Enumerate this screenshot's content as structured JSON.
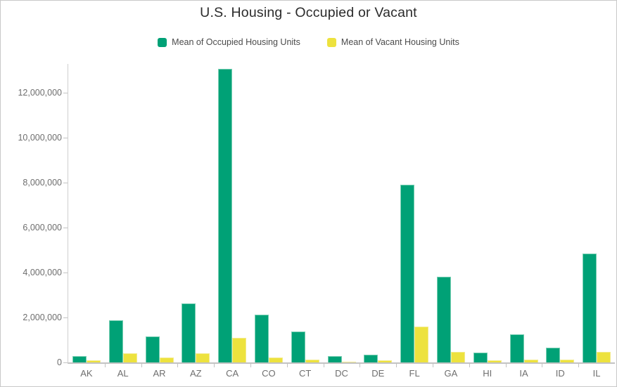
{
  "chart_data": {
    "type": "bar",
    "title": "U.S. Housing - Occupied or Vacant",
    "categories": [
      "AK",
      "AL",
      "AR",
      "AZ",
      "CA",
      "CO",
      "CT",
      "DC",
      "DE",
      "FL",
      "GA",
      "HI",
      "IA",
      "ID",
      "IL"
    ],
    "series": [
      {
        "name": "Mean of Occupied Housing Units",
        "color": "#00a176",
        "border_color": "#79ceb3",
        "values": [
          290000,
          1870000,
          1150000,
          2620000,
          13060000,
          2120000,
          1360000,
          280000,
          350000,
          7900000,
          3810000,
          450000,
          1250000,
          650000,
          4850000
        ]
      },
      {
        "name": "Mean of Vacant Housing Units",
        "color": "#ede23e",
        "border_color": "#f3eb8e",
        "values": [
          80000,
          400000,
          220000,
          400000,
          1090000,
          220000,
          130000,
          40000,
          80000,
          1600000,
          480000,
          90000,
          130000,
          110000,
          460000
        ]
      }
    ],
    "xlabel": "",
    "ylabel": "",
    "ylim": [
      0,
      13280000
    ],
    "yticks": [
      {
        "value": 0,
        "label": "0"
      },
      {
        "value": 2000000,
        "label": "2,000,000"
      },
      {
        "value": 4000000,
        "label": "4,000,000"
      },
      {
        "value": 6000000,
        "label": "6,000,000"
      },
      {
        "value": 8000000,
        "label": "8,000,000"
      },
      {
        "value": 10000000,
        "label": "10,000,000"
      },
      {
        "value": 12000000,
        "label": "12,000,000"
      }
    ],
    "grid": false,
    "legend_position": "top"
  },
  "colors": {
    "title_text": "#2b2b2b",
    "legend_text": "#4b4b4b",
    "axis_text": "#6e6e6e",
    "axis_line": "#cfcfcf",
    "tick_line": "#c3c3c3",
    "widget_border": "#c9c9c9",
    "background": "#ffffff"
  }
}
